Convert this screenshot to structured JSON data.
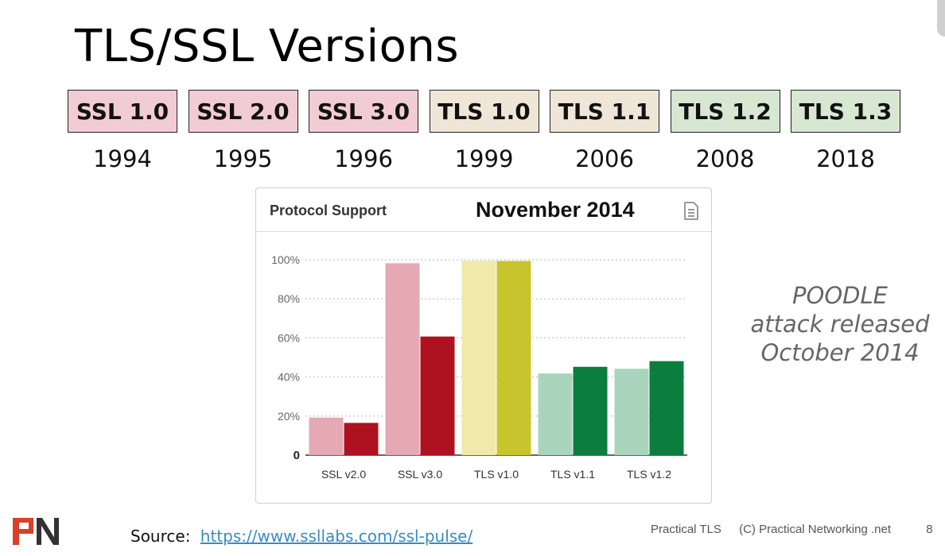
{
  "slide": {
    "title": "TLS/SSL Versions",
    "page_number": "8",
    "footer": {
      "left": "Practical TLS",
      "right": "(C) Practical Networking .net"
    },
    "source": {
      "label": "Source:",
      "link": "https://www.ssllabs.com/ssl-pulse/"
    },
    "note": [
      "POODLE",
      "attack released",
      "October 2014"
    ],
    "versions": [
      {
        "name": "SSL 1.0",
        "year": "1994",
        "color": "#f2ccd4"
      },
      {
        "name": "SSL 2.0",
        "year": "1995",
        "color": "#f2ccd4"
      },
      {
        "name": "SSL 3.0",
        "year": "1996",
        "color": "#f2ccd4"
      },
      {
        "name": "TLS 1.0",
        "year": "1999",
        "color": "#efe6d8"
      },
      {
        "name": "TLS 1.1",
        "year": "2006",
        "color": "#efe6d8"
      },
      {
        "name": "TLS 1.2",
        "year": "2008",
        "color": "#d7e7d2"
      },
      {
        "name": "TLS 1.3",
        "year": "2018",
        "color": "#d7e7d2"
      }
    ]
  },
  "panel": {
    "title": "Protocol Support",
    "icon": "document-icon"
  },
  "chart_data": {
    "type": "bar",
    "title": "November 2014",
    "categories": [
      "SSL v2.0",
      "SSL v3.0",
      "TLS v1.0",
      "TLS v1.1",
      "TLS v1.2"
    ],
    "series": [
      {
        "values": [
          19.2,
          98.2,
          99.5,
          41.8,
          44.2
        ],
        "colors": [
          "#e4a9b2",
          "#e4a9b2",
          "#f0e9a9",
          "#a8d5bc",
          "#a8d5bc"
        ]
      },
      {
        "values": [
          16.5,
          60.7,
          99.4,
          45.2,
          48.1
        ],
        "colors": [
          "#ae1120",
          "#ae1120",
          "#c8c42e",
          "#0b7d3e",
          "#0b7d3e"
        ]
      }
    ],
    "yticks": [
      "0",
      "20%",
      "40%",
      "60%",
      "80%",
      "100%"
    ],
    "ytick_values": [
      0,
      20,
      40,
      60,
      80,
      100
    ],
    "ylim": [
      0,
      100
    ],
    "grid": true
  }
}
